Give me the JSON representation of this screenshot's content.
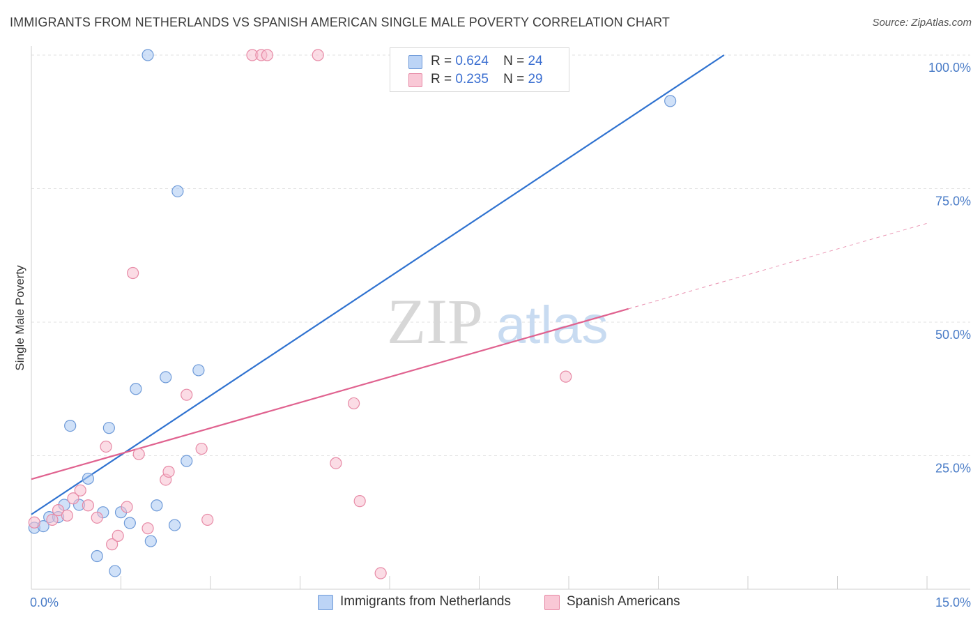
{
  "header": {
    "title": "IMMIGRANTS FROM NETHERLANDS VS SPANISH AMERICAN SINGLE MALE POVERTY CORRELATION CHART",
    "source": "Source: ZipAtlas.com"
  },
  "legend_top": {
    "rows": [
      {
        "r_label": "R =",
        "r_value": "0.624",
        "n_label": "N =",
        "n_value": "24"
      },
      {
        "r_label": "R =",
        "r_value": "0.235",
        "n_label": "N =",
        "n_value": "29"
      }
    ]
  },
  "watermark": {
    "zip": "ZIP",
    "atlas": "atlas"
  },
  "chart_data": {
    "type": "scatter",
    "title": "IMMIGRANTS FROM NETHERLANDS VS SPANISH AMERICAN SINGLE MALE POVERTY CORRELATION CHART",
    "xlabel": "",
    "ylabel": "Single Male Poverty",
    "xlim": [
      0,
      15
    ],
    "ylim": [
      0,
      100
    ],
    "x_tick_labels": [
      {
        "value": 0,
        "label": "0.0%"
      },
      {
        "value": 15,
        "label": "15.0%"
      }
    ],
    "y_tick_labels": [
      {
        "value": 100,
        "label": "100.0%"
      },
      {
        "value": 75,
        "label": "75.0%"
      },
      {
        "value": 50,
        "label": "50.0%"
      },
      {
        "value": 25,
        "label": "25.0%"
      }
    ],
    "series": [
      {
        "name": "Immigrants from Netherlands",
        "color": "#a9c8f2",
        "stroke": "#6e9ad8",
        "line_color": "#2f72d0",
        "points": [
          [
            0.05,
            11.5
          ],
          [
            0.2,
            11.8
          ],
          [
            0.3,
            13.5
          ],
          [
            0.45,
            13.5
          ],
          [
            0.55,
            15.8
          ],
          [
            0.65,
            30.6
          ],
          [
            0.8,
            15.8
          ],
          [
            0.95,
            20.7
          ],
          [
            1.1,
            6.2
          ],
          [
            1.2,
            14.4
          ],
          [
            1.3,
            30.2
          ],
          [
            1.4,
            3.4
          ],
          [
            1.5,
            14.4
          ],
          [
            1.65,
            12.4
          ],
          [
            1.75,
            37.5
          ],
          [
            1.95,
            100.0
          ],
          [
            2.0,
            9.0
          ],
          [
            2.1,
            15.7
          ],
          [
            2.25,
            39.7
          ],
          [
            2.4,
            12.0
          ],
          [
            2.45,
            74.5
          ],
          [
            2.6,
            24.0
          ],
          [
            2.8,
            41.0
          ],
          [
            10.7,
            91.4
          ]
        ],
        "trendline": {
          "x": [
            0,
            11.6
          ],
          "y": [
            14.0,
            100.0
          ],
          "dashed_extension": false
        }
      },
      {
        "name": "Spanish Americans",
        "color": "#f7bfd0",
        "stroke": "#e78aa6",
        "line_color": "#e0628f",
        "points": [
          [
            0.05,
            12.5
          ],
          [
            0.35,
            13.0
          ],
          [
            0.45,
            14.8
          ],
          [
            0.6,
            13.8
          ],
          [
            0.7,
            17.0
          ],
          [
            0.82,
            18.5
          ],
          [
            0.95,
            15.7
          ],
          [
            1.1,
            13.4
          ],
          [
            1.25,
            26.7
          ],
          [
            1.35,
            8.4
          ],
          [
            1.45,
            10.0
          ],
          [
            1.6,
            15.4
          ],
          [
            1.7,
            59.2
          ],
          [
            1.8,
            25.3
          ],
          [
            1.95,
            11.4
          ],
          [
            2.25,
            20.5
          ],
          [
            2.3,
            22.0
          ],
          [
            2.6,
            36.4
          ],
          [
            2.85,
            26.3
          ],
          [
            2.95,
            13.0
          ],
          [
            3.7,
            100.0
          ],
          [
            3.85,
            100.0
          ],
          [
            3.95,
            100.0
          ],
          [
            4.8,
            100.0
          ],
          [
            5.1,
            23.6
          ],
          [
            5.4,
            34.8
          ],
          [
            5.5,
            16.5
          ],
          [
            5.85,
            3.0
          ],
          [
            8.95,
            39.8
          ]
        ],
        "trendline": {
          "x": [
            0,
            10.0
          ],
          "y": [
            20.6,
            52.5
          ],
          "dashed_extension": {
            "x": [
              10.0,
              15.0
            ],
            "y": [
              52.5,
              68.5
            ]
          }
        }
      }
    ],
    "legend": [
      "Immigrants from Netherlands",
      "Spanish Americans"
    ],
    "grid": true
  }
}
